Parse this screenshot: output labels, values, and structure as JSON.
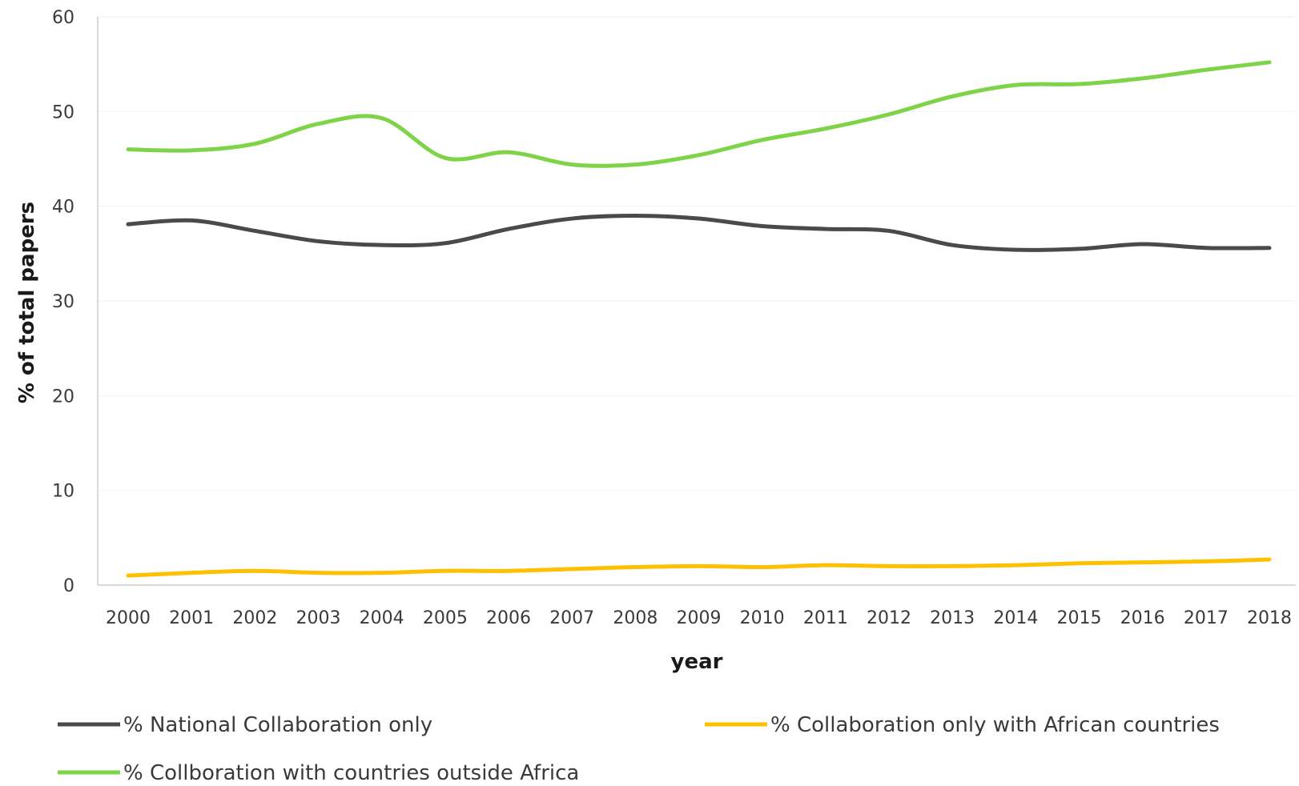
{
  "chart_data": {
    "type": "line",
    "xlabel": "year",
    "ylabel": "% of total papers",
    "ylim": [
      0,
      60
    ],
    "yticks": [
      0,
      10,
      20,
      30,
      40,
      50,
      60
    ],
    "grid": true,
    "legend_position": "bottom",
    "x": [
      "2000",
      "2001",
      "2002",
      "2003",
      "2004",
      "2005",
      "2006",
      "2007",
      "2008",
      "2009",
      "2010",
      "2011",
      "2012",
      "2013",
      "2014",
      "2015",
      "2016",
      "2017",
      "2018"
    ],
    "series": [
      {
        "name": "% National Collaboration only",
        "color": "#4a4a4a",
        "values": [
          38.1,
          38.5,
          37.4,
          36.3,
          35.9,
          36.1,
          37.6,
          38.7,
          39.0,
          38.7,
          37.9,
          37.6,
          37.4,
          35.9,
          35.4,
          35.5,
          36.0,
          35.6,
          35.6
        ]
      },
      {
        "name": "% Collaboration only with African countries",
        "color": "#ffc000",
        "values": [
          1.0,
          1.3,
          1.5,
          1.3,
          1.3,
          1.5,
          1.5,
          1.7,
          1.9,
          2.0,
          1.9,
          2.1,
          2.0,
          2.0,
          2.1,
          2.3,
          2.4,
          2.5,
          2.7
        ]
      },
      {
        "name": "% Collboration with countries outside Africa",
        "color": "#7ed348",
        "values": [
          46.0,
          45.9,
          46.6,
          48.7,
          49.3,
          45.1,
          45.7,
          44.4,
          44.4,
          45.4,
          47.0,
          48.2,
          49.7,
          51.6,
          52.8,
          52.9,
          53.5,
          54.4,
          55.2
        ]
      }
    ]
  }
}
